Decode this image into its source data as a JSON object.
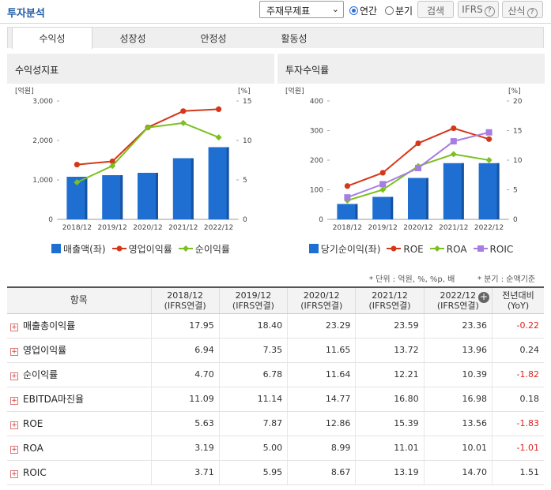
{
  "header": {
    "title": "투자분석",
    "select_value": "주재무제표",
    "radio_annual": "연간",
    "radio_quarter": "분기",
    "search_btn": "검색",
    "ifrs_btn": "IFRS",
    "formula_btn": "산식",
    "help": "?"
  },
  "tabs": [
    "수익성",
    "성장성",
    "안정성",
    "활동성"
  ],
  "panels": {
    "left_title": "수익성지표",
    "right_title": "투자수익률",
    "axis_unit_left": "[억원]",
    "axis_unit_right": "[%]"
  },
  "colors": {
    "bar": "#1f6fd2",
    "op_margin": "#d4381a",
    "net_margin": "#7cc020",
    "roe": "#d4381a",
    "roa": "#7cc020",
    "roic": "#a67de0"
  },
  "chart_data": [
    {
      "type": "bar+line",
      "title": "수익성지표",
      "categories": [
        "2018/12",
        "2019/12",
        "2020/12",
        "2021/12",
        "2022/12"
      ],
      "left_axis": {
        "unit": "[억원]",
        "ylim": [
          0,
          3000
        ],
        "ticks": [
          "0",
          "1,000",
          "2,000",
          "3,000"
        ]
      },
      "right_axis": {
        "unit": "[%]",
        "ylim": [
          0,
          15
        ],
        "ticks": [
          "0",
          "5",
          "10",
          "15"
        ]
      },
      "series": [
        {
          "name": "매출액(좌)",
          "kind": "bar",
          "axis": "left",
          "values": [
            1080,
            1120,
            1180,
            1550,
            1830
          ]
        },
        {
          "name": "영업이익률",
          "kind": "line",
          "axis": "right",
          "values": [
            6.94,
            7.35,
            11.65,
            13.72,
            13.96
          ]
        },
        {
          "name": "순이익률",
          "kind": "line",
          "axis": "right",
          "values": [
            4.7,
            6.78,
            11.64,
            12.21,
            10.39
          ]
        }
      ]
    },
    {
      "type": "bar+line",
      "title": "투자수익률",
      "categories": [
        "2018/12",
        "2019/12",
        "2020/12",
        "2021/12",
        "2022/12"
      ],
      "left_axis": {
        "unit": "[억원]",
        "ylim": [
          0,
          400
        ],
        "ticks": [
          "0",
          "100",
          "200",
          "300",
          "400"
        ]
      },
      "right_axis": {
        "unit": "[%]",
        "ylim": [
          0,
          20
        ],
        "ticks": [
          "0",
          "5",
          "10",
          "15",
          "20"
        ]
      },
      "series": [
        {
          "name": "당기순이익(좌)",
          "kind": "bar",
          "axis": "left",
          "values": [
            52,
            76,
            140,
            190,
            190
          ]
        },
        {
          "name": "ROE",
          "kind": "line",
          "axis": "right",
          "values": [
            5.63,
            7.87,
            12.86,
            15.39,
            13.56
          ]
        },
        {
          "name": "ROA",
          "kind": "line",
          "axis": "right",
          "values": [
            3.19,
            5.0,
            8.99,
            11.01,
            10.01
          ]
        },
        {
          "name": "ROIC",
          "kind": "line",
          "axis": "right",
          "values": [
            3.71,
            5.95,
            8.67,
            13.19,
            14.7
          ]
        }
      ]
    }
  ],
  "notes": {
    "unit": "* 단위 : 억원, %, %p, 배",
    "period": "* 분기 : 순액기준"
  },
  "table": {
    "head": [
      "항목",
      [
        "2018/12",
        "(IFRS연결)"
      ],
      [
        "2019/12",
        "(IFRS연결)"
      ],
      [
        "2020/12",
        "(IFRS연결)"
      ],
      [
        "2021/12",
        "(IFRS연결)"
      ],
      [
        "2022/12",
        "(IFRS연결)"
      ],
      [
        "전년대비",
        "(YoY)"
      ]
    ],
    "rows": [
      [
        "매출총이익률",
        "17.95",
        "18.40",
        "23.29",
        "23.59",
        "23.36",
        "-0.22"
      ],
      [
        "영업이익률",
        "6.94",
        "7.35",
        "11.65",
        "13.72",
        "13.96",
        "0.24"
      ],
      [
        "순이익률",
        "4.70",
        "6.78",
        "11.64",
        "12.21",
        "10.39",
        "-1.82"
      ],
      [
        "EBITDA마진율",
        "11.09",
        "11.14",
        "14.77",
        "16.80",
        "16.98",
        "0.18"
      ],
      [
        "ROE",
        "5.63",
        "7.87",
        "12.86",
        "15.39",
        "13.56",
        "-1.83"
      ],
      [
        "ROA",
        "3.19",
        "5.00",
        "8.99",
        "11.01",
        "10.01",
        "-1.01"
      ],
      [
        "ROIC",
        "3.71",
        "5.95",
        "8.67",
        "13.19",
        "14.70",
        "1.51"
      ]
    ]
  }
}
